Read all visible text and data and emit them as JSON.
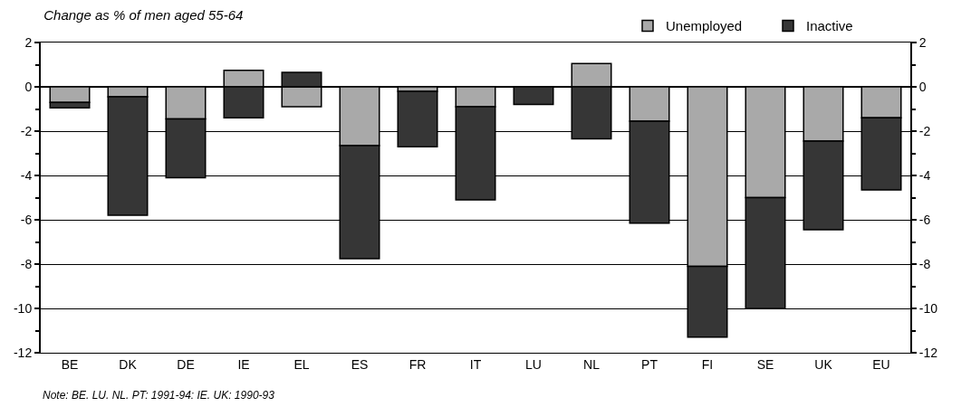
{
  "chart_data": {
    "type": "bar",
    "stacked": true,
    "title": "Change as % of men aged 55-64",
    "categories": [
      "BE",
      "DK",
      "DE",
      "IE",
      "EL",
      "ES",
      "FR",
      "IT",
      "LU",
      "NL",
      "PT",
      "FI",
      "SE",
      "UK",
      "EU"
    ],
    "series": [
      {
        "name": "Unemployed",
        "color": "#a9a9a9",
        "values": [
          -0.7,
          -0.45,
          -1.45,
          0.75,
          -0.9,
          -2.65,
          -0.2,
          -0.9,
          null,
          1.05,
          -1.55,
          -8.1,
          -5.0,
          -2.45,
          -1.4
        ]
      },
      {
        "name": "Inactive",
        "color": "#363636",
        "values": [
          -0.25,
          -5.35,
          -2.65,
          -1.4,
          0.65,
          -5.1,
          -2.5,
          -4.2,
          -0.8,
          -2.35,
          -4.6,
          -3.2,
          -5.0,
          -4.0,
          -3.25
        ]
      }
    ],
    "ylim": [
      -12,
      2
    ],
    "yticks": [
      2,
      {
        "value": 1,
        "label": null
      },
      0,
      {
        "value": -1,
        "label": null
      },
      -2,
      {
        "value": -3,
        "label": null
      },
      -4,
      {
        "value": -5,
        "label": null
      },
      -6,
      {
        "value": -7,
        "label": null
      },
      -8,
      {
        "value": -9,
        "label": null
      },
      -10,
      {
        "value": -11,
        "label": null
      },
      -12
    ],
    "y2lim": [
      -12,
      2
    ],
    "y2ticks": [
      2,
      {
        "value": 1,
        "label": null
      },
      0,
      {
        "value": -1,
        "label": null
      },
      -2,
      {
        "value": -3,
        "label": null
      },
      -4,
      {
        "value": -5,
        "label": null
      },
      -6,
      {
        "value": -7,
        "label": null
      },
      -8,
      {
        "value": -9,
        "label": null
      },
      -10,
      {
        "value": -11,
        "label": null
      },
      -12
    ],
    "grid": "y",
    "legend": "top right",
    "annotations": [
      "Note: BE. LU. NL. PT: 1991-94: IE. UK: 1990-93"
    ]
  }
}
